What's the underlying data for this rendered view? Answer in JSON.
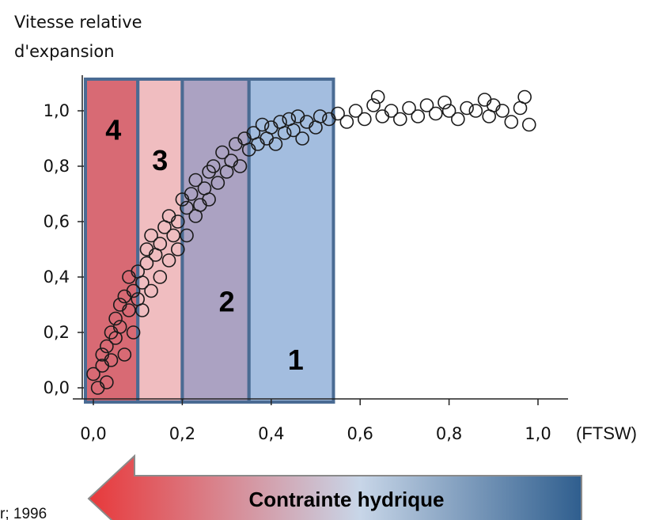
{
  "chart_data": {
    "type": "scatter",
    "ylabel_lines": [
      "Vitesse relative",
      "d'expansion"
    ],
    "xlabel": "(FTSW)",
    "xlim": [
      0.0,
      1.0
    ],
    "ylim": [
      0.0,
      1.0
    ],
    "x_ticks": [
      "0,0",
      "0,2",
      "0,4",
      "0,6",
      "0,8",
      "1,0"
    ],
    "y_ticks": [
      "0,0",
      "0,2",
      "0,4",
      "0,6",
      "0,8",
      "1,0"
    ],
    "grid": false,
    "zones": [
      {
        "label": "4",
        "x_range": [
          0.0,
          0.1
        ],
        "color": "#c9303f"
      },
      {
        "label": "3",
        "x_range": [
          0.1,
          0.2
        ],
        "color": "#eaa3a8"
      },
      {
        "label": "2",
        "x_range": [
          0.2,
          0.35
        ],
        "color": "#8a7eab"
      },
      {
        "label": "1",
        "x_range": [
          0.35,
          0.54
        ],
        "color": "#7fa4d3"
      }
    ],
    "points": [
      [
        0.0,
        0.05
      ],
      [
        0.01,
        0.0
      ],
      [
        0.02,
        0.08
      ],
      [
        0.02,
        0.12
      ],
      [
        0.03,
        0.02
      ],
      [
        0.03,
        0.15
      ],
      [
        0.04,
        0.1
      ],
      [
        0.04,
        0.2
      ],
      [
        0.05,
        0.25
      ],
      [
        0.05,
        0.18
      ],
      [
        0.06,
        0.3
      ],
      [
        0.06,
        0.22
      ],
      [
        0.07,
        0.33
      ],
      [
        0.07,
        0.12
      ],
      [
        0.08,
        0.4
      ],
      [
        0.08,
        0.28
      ],
      [
        0.09,
        0.35
      ],
      [
        0.09,
        0.2
      ],
      [
        0.1,
        0.42
      ],
      [
        0.1,
        0.32
      ],
      [
        0.11,
        0.38
      ],
      [
        0.11,
        0.28
      ],
      [
        0.12,
        0.45
      ],
      [
        0.12,
        0.5
      ],
      [
        0.13,
        0.35
      ],
      [
        0.13,
        0.55
      ],
      [
        0.14,
        0.48
      ],
      [
        0.15,
        0.52
      ],
      [
        0.15,
        0.4
      ],
      [
        0.16,
        0.58
      ],
      [
        0.17,
        0.46
      ],
      [
        0.17,
        0.62
      ],
      [
        0.18,
        0.55
      ],
      [
        0.19,
        0.6
      ],
      [
        0.19,
        0.5
      ],
      [
        0.2,
        0.68
      ],
      [
        0.21,
        0.65
      ],
      [
        0.21,
        0.55
      ],
      [
        0.22,
        0.7
      ],
      [
        0.23,
        0.62
      ],
      [
        0.23,
        0.75
      ],
      [
        0.24,
        0.66
      ],
      [
        0.25,
        0.72
      ],
      [
        0.26,
        0.78
      ],
      [
        0.26,
        0.68
      ],
      [
        0.27,
        0.8
      ],
      [
        0.28,
        0.74
      ],
      [
        0.29,
        0.85
      ],
      [
        0.3,
        0.78
      ],
      [
        0.31,
        0.82
      ],
      [
        0.32,
        0.88
      ],
      [
        0.33,
        0.8
      ],
      [
        0.34,
        0.9
      ],
      [
        0.35,
        0.86
      ],
      [
        0.36,
        0.92
      ],
      [
        0.37,
        0.88
      ],
      [
        0.38,
        0.95
      ],
      [
        0.39,
        0.9
      ],
      [
        0.4,
        0.94
      ],
      [
        0.41,
        0.88
      ],
      [
        0.42,
        0.96
      ],
      [
        0.43,
        0.92
      ],
      [
        0.44,
        0.97
      ],
      [
        0.45,
        0.93
      ],
      [
        0.46,
        0.98
      ],
      [
        0.47,
        0.9
      ],
      [
        0.48,
        0.96
      ],
      [
        0.5,
        0.94
      ],
      [
        0.51,
        0.98
      ],
      [
        0.53,
        0.97
      ],
      [
        0.55,
        0.99
      ],
      [
        0.57,
        0.96
      ],
      [
        0.59,
        1.0
      ],
      [
        0.61,
        0.97
      ],
      [
        0.63,
        1.02
      ],
      [
        0.64,
        1.05
      ],
      [
        0.65,
        0.98
      ],
      [
        0.67,
        1.0
      ],
      [
        0.69,
        0.97
      ],
      [
        0.71,
        1.01
      ],
      [
        0.73,
        0.98
      ],
      [
        0.75,
        1.02
      ],
      [
        0.77,
        0.99
      ],
      [
        0.79,
        1.03
      ],
      [
        0.8,
        1.0
      ],
      [
        0.82,
        0.97
      ],
      [
        0.84,
        1.01
      ],
      [
        0.86,
        1.0
      ],
      [
        0.88,
        1.04
      ],
      [
        0.89,
        0.98
      ],
      [
        0.9,
        1.02
      ],
      [
        0.92,
        1.0
      ],
      [
        0.94,
        0.96
      ],
      [
        0.96,
        1.01
      ],
      [
        0.97,
        1.05
      ],
      [
        0.98,
        0.95
      ]
    ]
  },
  "arrow": {
    "label": "Contrainte hydrique",
    "color_start": "#e8383a",
    "color_mid": "#c8d6e8",
    "color_end": "#2f5e8e"
  },
  "source": "r; 1996"
}
